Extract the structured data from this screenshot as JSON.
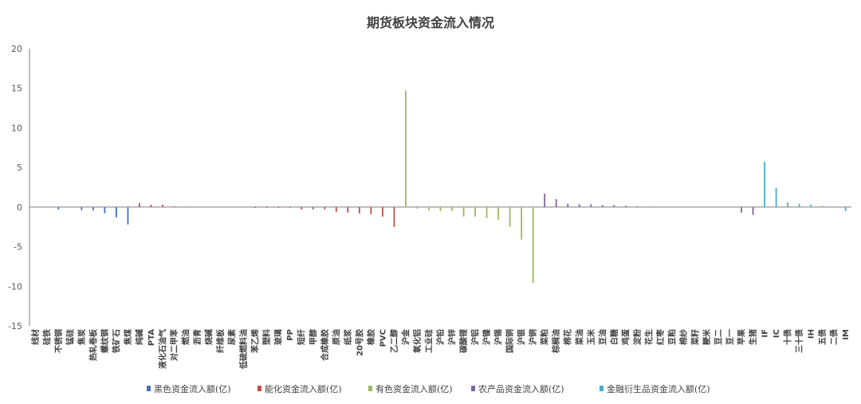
{
  "chart_data": {
    "type": "bar",
    "title": "期货板块资金流入情况",
    "xlabel": "",
    "ylabel": "",
    "ylim": [
      -15,
      20
    ],
    "yticks": [
      20,
      15,
      10,
      5,
      0,
      -5,
      -10,
      -15
    ],
    "grid": false,
    "legend_position": "bottom",
    "categories": [
      "线材",
      "硅铁",
      "不锈钢",
      "锰硅",
      "焦炭",
      "热轧卷板",
      "螺纹钢",
      "铁矿石",
      "焦煤",
      "纯碱",
      "PTA",
      "液化石油气",
      "对二甲苯",
      "燃油",
      "沥青",
      "烧碱",
      "纤维板",
      "尿素",
      "低硫燃料油",
      "苯乙烯",
      "塑料",
      "玻璃",
      "PP",
      "短纤",
      "甲醇",
      "合成橡胶",
      "原油",
      "纸浆",
      "20号胶",
      "橡胶",
      "PVC",
      "乙二醇",
      "沪金",
      "氧化铝",
      "工业硅",
      "沪铅",
      "沪锌",
      "碳酸锂",
      "沪铝",
      "沪镍",
      "沪锡",
      "国际铜",
      "沪银",
      "沪铜",
      "菜粕",
      "棕榈油",
      "棉花",
      "菜油",
      "玉米",
      "豆油",
      "白糖",
      "鸡蛋",
      "淀粉",
      "花生",
      "红枣",
      "豆粕",
      "棉纱",
      "菜籽",
      "粳米",
      "豆二",
      "豆一",
      "苹果",
      "生猪",
      "IF",
      "IC",
      "十债",
      "三十债",
      "IH",
      "五债",
      "二债",
      "IM"
    ],
    "series": [
      {
        "name": "黑色资金流入额(亿)",
        "color": "#4472c4",
        "values": [
          0,
          0,
          -0.3,
          0,
          -0.4,
          -0.4,
          -0.8,
          -1.3,
          -2.2,
          0,
          0,
          0,
          0,
          0,
          0,
          0,
          0,
          0,
          0,
          0,
          0,
          0,
          0,
          0,
          0,
          0,
          0,
          0,
          0,
          0,
          0,
          0,
          0,
          0,
          0,
          0,
          0,
          0,
          0,
          0,
          0,
          0,
          0,
          0,
          0,
          0,
          0,
          0,
          0,
          0,
          0,
          0,
          0,
          0,
          0,
          0,
          0,
          0,
          0,
          0,
          0,
          0,
          0,
          0,
          0,
          0,
          0,
          0,
          0,
          0,
          0
        ]
      },
      {
        "name": "能化资金流入额(亿)",
        "color": "#c0504d",
        "values": [
          0,
          0,
          0,
          0,
          0,
          0,
          0,
          0,
          0,
          0.5,
          0.3,
          0.3,
          0.1,
          0.05,
          0,
          0,
          0,
          0,
          0,
          -0.1,
          -0.1,
          -0.1,
          -0.1,
          -0.3,
          -0.3,
          -0.3,
          -0.6,
          -0.7,
          -0.8,
          -0.9,
          -1.2,
          -2.5,
          0,
          0,
          0,
          0,
          0,
          0,
          0,
          0,
          0,
          0,
          0,
          0,
          0,
          0,
          0,
          0,
          0,
          0,
          0,
          0,
          0,
          0,
          0,
          0,
          0,
          0,
          0,
          0,
          0,
          0,
          0,
          0,
          0,
          0,
          0,
          0,
          0,
          0,
          0
        ]
      },
      {
        "name": "有色资金流入额(亿)",
        "color": "#9bbb59",
        "values": [
          0,
          0,
          0,
          0,
          0,
          0,
          0,
          0,
          0,
          0,
          0,
          0,
          0,
          0,
          0,
          0,
          0,
          0,
          0,
          0,
          0,
          0,
          0,
          0,
          0,
          0,
          0,
          0,
          0,
          0,
          0,
          0,
          14.7,
          -0.2,
          -0.4,
          -0.5,
          -0.5,
          -1.2,
          -1.2,
          -1.4,
          -1.6,
          -2.5,
          -4.1,
          -9.6,
          0,
          0,
          0,
          0,
          0,
          0,
          0,
          0,
          0,
          0,
          0,
          0,
          0,
          0,
          0,
          0,
          0,
          0,
          0,
          0,
          0,
          0,
          0,
          0,
          0,
          0,
          0
        ]
      },
      {
        "name": "农产品资金流入额(亿)",
        "color": "#8064a2",
        "values": [
          0,
          0,
          0,
          0,
          0,
          0,
          0,
          0,
          0,
          0,
          0,
          0,
          0,
          0,
          0,
          0,
          0,
          0,
          0,
          0,
          0,
          0,
          0,
          0,
          0,
          0,
          0,
          0,
          0,
          0,
          0,
          0,
          0,
          0,
          0,
          0,
          0,
          0,
          0,
          0,
          0,
          0,
          0,
          0,
          1.7,
          1.0,
          0.4,
          0.35,
          0.35,
          0.25,
          0.25,
          0.15,
          0.1,
          0.05,
          0,
          0,
          0,
          0,
          0,
          0,
          0,
          -0.7,
          -1.0,
          0,
          0,
          0,
          0,
          0,
          0,
          0,
          0
        ]
      },
      {
        "name": "金融衍生品资金流入额(亿)",
        "color": "#4bacc6",
        "values": [
          0,
          0,
          0,
          0,
          0,
          0,
          0,
          0,
          0,
          0,
          0,
          0,
          0,
          0,
          0,
          0,
          0,
          0,
          0,
          0,
          0,
          0,
          0,
          0,
          0,
          0,
          0,
          0,
          0,
          0,
          0,
          0,
          0,
          0,
          0,
          0,
          0,
          0,
          0,
          0,
          0,
          0,
          0,
          0,
          0,
          0,
          0,
          0,
          0,
          0,
          0,
          0,
          0,
          0,
          0,
          0,
          0,
          0,
          0,
          0,
          0,
          0,
          0,
          5.7,
          2.4,
          0.6,
          0.4,
          0.3,
          0.15,
          0.05,
          -0.5
        ]
      }
    ]
  }
}
